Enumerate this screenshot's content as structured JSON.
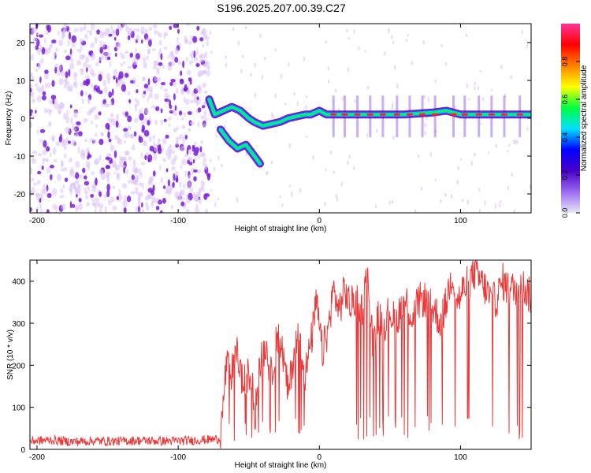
{
  "title": "S196.2025.207.00.39.C27",
  "colors": {
    "snr_line": "#e83a3a",
    "point_dark": "#7a1fd6",
    "point_light": "#d9c2f5",
    "axis": "#000000"
  },
  "chart_data": [
    {
      "type": "heatmap",
      "xlabel": "Height of straight line (km)",
      "ylabel": "Frequency (Hz)",
      "xlim": [
        -205,
        150
      ],
      "ylim": [
        -25,
        25
      ],
      "xticks": [
        -200,
        -100,
        0,
        100
      ],
      "xtick_labels": [
        "-200",
        "-100",
        "0",
        "100"
      ],
      "yticks": [
        -20,
        -10,
        0,
        10,
        20
      ],
      "ytick_labels": [
        "-20",
        "-10",
        "0",
        "10",
        "20"
      ],
      "colorbar": {
        "label": "Normalized spectral amplitude",
        "range": [
          0,
          1
        ],
        "ticks": [
          0.0,
          0.2,
          0.4,
          0.6,
          0.8
        ],
        "tick_labels": [
          "0.0",
          "0.2",
          "0.4",
          "0.6",
          "0.8"
        ],
        "colormap": [
          "#e8e8f8",
          "#9b6af0",
          "#4b00c8",
          "#0000ff",
          "#00e0ff",
          "#00ff40",
          "#ffff00",
          "#ff8000",
          "#ff0000",
          "#ff3399"
        ]
      },
      "noise_region_x": [
        -205,
        -78
      ],
      "signal_track": [
        {
          "x": -78,
          "y": 5
        },
        {
          "x": -74,
          "y": 1
        },
        {
          "x": -68,
          "y": 2
        },
        {
          "x": -62,
          "y": 3
        },
        {
          "x": -56,
          "y": 2
        },
        {
          "x": -50,
          "y": 0
        },
        {
          "x": -46,
          "y": -1
        },
        {
          "x": -40,
          "y": -2
        },
        {
          "x": -34,
          "y": -1.5
        },
        {
          "x": -28,
          "y": -1
        },
        {
          "x": -22,
          "y": 0
        },
        {
          "x": -16,
          "y": 0.5
        },
        {
          "x": -10,
          "y": 1
        },
        {
          "x": -6,
          "y": 1
        },
        {
          "x": 0,
          "y": 2
        },
        {
          "x": 5,
          "y": 1
        },
        {
          "x": 20,
          "y": 1
        },
        {
          "x": 40,
          "y": 1
        },
        {
          "x": 60,
          "y": 1
        },
        {
          "x": 80,
          "y": 1.5
        },
        {
          "x": 90,
          "y": 2
        },
        {
          "x": 100,
          "y": 1
        },
        {
          "x": 120,
          "y": 1
        },
        {
          "x": 150,
          "y": 1
        }
      ],
      "branch_track": [
        {
          "x": -70,
          "y": -3
        },
        {
          "x": -64,
          "y": -6
        },
        {
          "x": -58,
          "y": -8
        },
        {
          "x": -52,
          "y": -7
        },
        {
          "x": -46,
          "y": -10
        },
        {
          "x": -42,
          "y": -12
        }
      ],
      "hot_spots_x": [
        10,
        18,
        27,
        36,
        45,
        55,
        64,
        73,
        82,
        95,
        103,
        113,
        122,
        131,
        142
      ]
    },
    {
      "type": "line",
      "xlabel": "Height of straight line (km)",
      "ylabel": "SNR (10 * v/v)",
      "xlim": [
        -205,
        150
      ],
      "ylim": [
        0,
        450
      ],
      "xticks": [
        -200,
        -100,
        0,
        100
      ],
      "xtick_labels": [
        "-200",
        "-100",
        "0",
        "100"
      ],
      "yticks": [
        0,
        100,
        200,
        300,
        400
      ],
      "ytick_labels": [
        "0",
        "100",
        "200",
        "300",
        "400"
      ],
      "series": [
        {
          "x": [
            -205,
            -190,
            -175,
            -160,
            -145,
            -130,
            -115,
            -100,
            -85,
            -70,
            -66,
            -62,
            -58,
            -54,
            -50,
            -46,
            -42,
            -38,
            -34,
            -30,
            -26,
            -22,
            -18,
            -14,
            -10,
            -6,
            -2,
            2,
            6,
            10,
            14,
            18,
            22,
            26,
            30,
            34,
            38,
            42,
            46,
            50,
            54,
            58,
            62,
            66,
            70,
            74,
            78,
            82,
            86,
            90,
            94,
            98,
            102,
            106,
            110,
            114,
            118,
            122,
            126,
            130,
            134,
            138,
            142,
            146,
            150
          ],
          "values": [
            20,
            22,
            18,
            20,
            19,
            21,
            20,
            20,
            22,
            25,
            200,
            180,
            230,
            150,
            180,
            120,
            200,
            250,
            170,
            280,
            230,
            130,
            230,
            280,
            180,
            250,
            350,
            230,
            280,
            380,
            330,
            380,
            340,
            360,
            330,
            420,
            250,
            320,
            300,
            330,
            300,
            340,
            350,
            310,
            350,
            360,
            340,
            330,
            300,
            350,
            420,
            350,
            380,
            400,
            420,
            400,
            380,
            350,
            360,
            400,
            380,
            380,
            400,
            380,
            360
          ]
        }
      ]
    }
  ]
}
